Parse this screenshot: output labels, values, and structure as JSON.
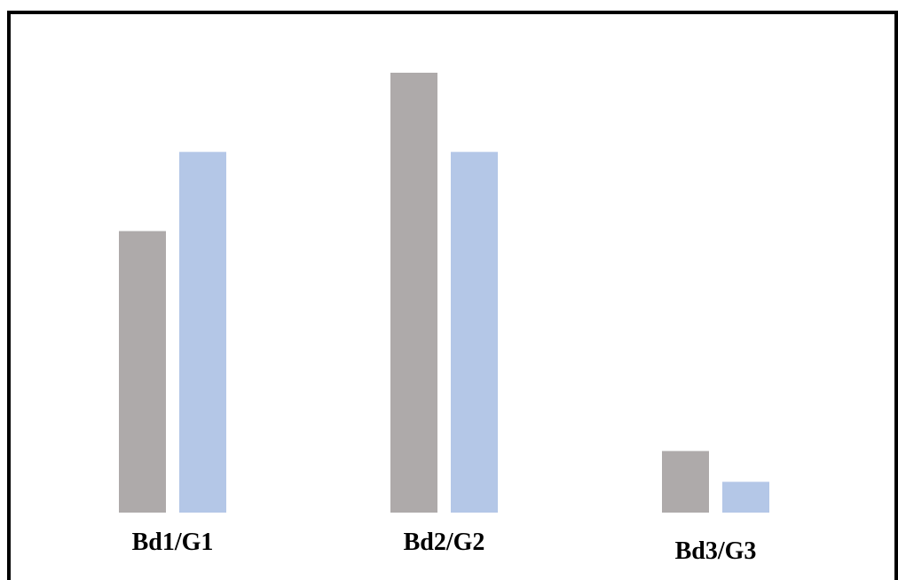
{
  "chart_data": {
    "type": "bar",
    "categories": [
      "Bd1/G1",
      "Bd2/G2",
      "Bd3/G3"
    ],
    "series": [
      {
        "color": "#aeaaaa",
        "values": [
          0.64,
          1.0,
          0.14
        ]
      },
      {
        "color": "#b4c7e7",
        "values": [
          0.82,
          0.82,
          0.07
        ]
      }
    ],
    "ylim": [
      0,
      1
    ],
    "grid": false,
    "legend": "none",
    "axes_visible": false
  }
}
